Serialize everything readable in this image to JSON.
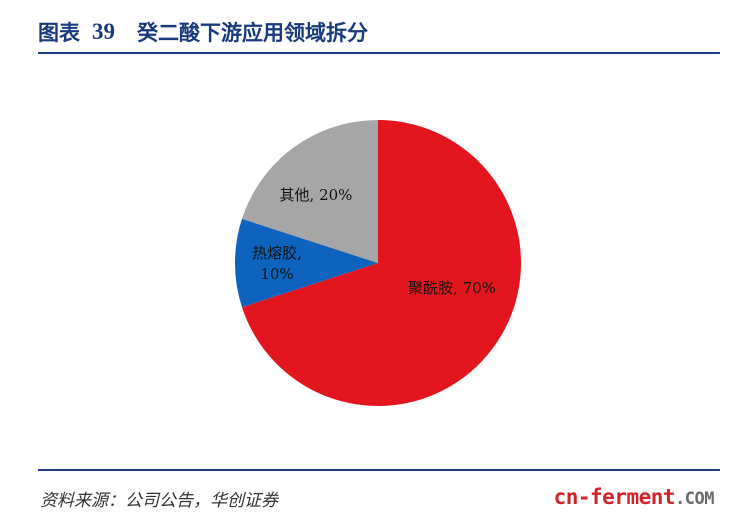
{
  "figure": {
    "label": "图表",
    "number": "39",
    "title": "癸二酸下游应用领域拆分"
  },
  "chart_data": {
    "type": "pie",
    "slices": [
      {
        "name": "聚酰胺",
        "value": 70,
        "label": "聚酰胺, 70%",
        "color": "#e3151e"
      },
      {
        "name": "热熔胶",
        "value": 10,
        "label_lines": [
          "热熔胶,",
          "10%"
        ],
        "color": "#0d63bd"
      },
      {
        "name": "其他",
        "value": 20,
        "label": "其他, 20%",
        "color": "#a6a6a6"
      }
    ],
    "start": "12 o'clock",
    "direction": "clockwise"
  },
  "source": "资料来源：公司公告，华创证券",
  "watermark": {
    "main": "cn-ferment",
    "suffix": ".COM"
  }
}
